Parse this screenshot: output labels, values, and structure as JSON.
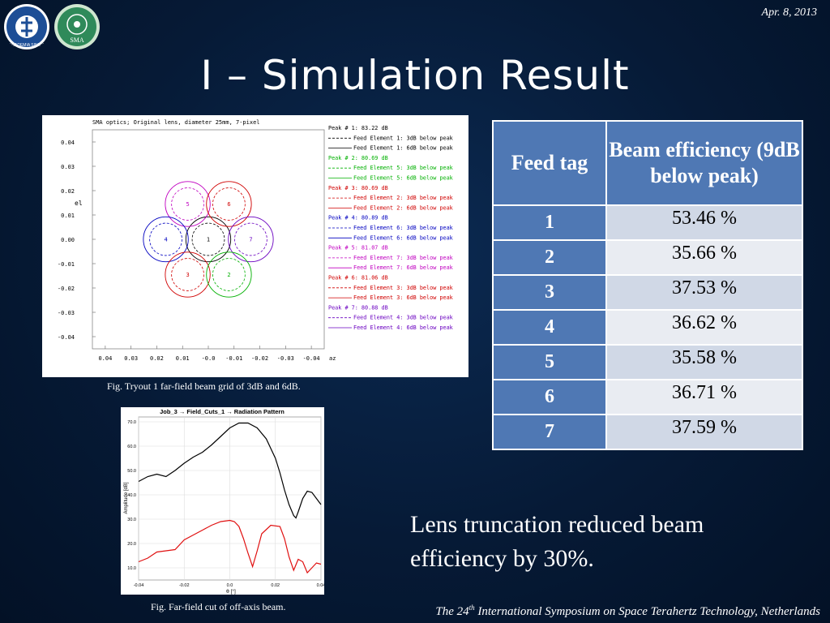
{
  "header": {
    "date": "Apr. 8, 2013"
  },
  "title": "I – Simulation Result",
  "logos": [
    {
      "name": "academia-sinica-logo",
      "icon": "seal-icon",
      "text": "ACADEMIA SINICA"
    },
    {
      "name": "sma-logo",
      "icon": "seal-icon",
      "text": "SMA"
    }
  ],
  "figure1": {
    "caption": "Fig. Tryout 1 far-field beam grid of 3dB and 6dB.",
    "plot_title": "SMA optics; Original lens, diameter 25mm, 7-pixel",
    "ylabel": "el",
    "xlabel": "az",
    "y_ticks": [
      "0.04",
      "0.03",
      "0.02",
      "0.01",
      "0.00",
      "-0.01",
      "-0.02",
      "-0.03",
      "-0.04"
    ],
    "x_ticks": [
      "0.04",
      "0.03",
      "0.02",
      "0.01",
      "-0.0",
      "-0.01",
      "-0.02",
      "-0.03",
      "-0.04"
    ],
    "legend": [
      {
        "text": "Peak # 1:  83.22 dB",
        "color": "#000000"
      },
      {
        "text": "Feed Element 1: 3dB below peak",
        "color": "#000000"
      },
      {
        "text": "Feed Element 1: 6dB below peak",
        "color": "#000000"
      },
      {
        "text": "Peak # 2:  80.69 dB",
        "color": "#00b000"
      },
      {
        "text": "Feed Element 5: 3dB below peak",
        "color": "#00b000"
      },
      {
        "text": "Feed Element 5: 6dB below peak",
        "color": "#00b000"
      },
      {
        "text": "Peak # 3:  80.69 dB",
        "color": "#d00000"
      },
      {
        "text": "Feed Element 2: 3dB below peak",
        "color": "#d00000"
      },
      {
        "text": "Feed Element 2: 6dB below peak",
        "color": "#d00000"
      },
      {
        "text": "Peak # 4:  80.89 dB",
        "color": "#0000c0"
      },
      {
        "text": "Feed Element 6: 3dB below peak",
        "color": "#0000c0"
      },
      {
        "text": "Feed Element 6: 6dB below peak",
        "color": "#0000c0"
      },
      {
        "text": "Peak # 5:  81.07 dB",
        "color": "#c000c0"
      },
      {
        "text": "Feed Element 7: 3dB below peak",
        "color": "#c000c0"
      },
      {
        "text": "Feed Element 7: 6dB below peak",
        "color": "#c000c0"
      },
      {
        "text": "Peak # 6:  81.06 dB",
        "color": "#d00000"
      },
      {
        "text": "Feed Element 3: 3dB below peak",
        "color": "#d00000"
      },
      {
        "text": "Feed Element 3: 6dB below peak",
        "color": "#d00000"
      },
      {
        "text": "Peak # 7:  80.88 dB",
        "color": "#6a00c0"
      },
      {
        "text": "Feed Element 4: 3dB below peak",
        "color": "#6a00c0"
      },
      {
        "text": "Feed Element 4: 6dB below peak",
        "color": "#6a00c0"
      }
    ],
    "beams": [
      {
        "label": "1",
        "az": 0.0,
        "el": 0.0,
        "color": "#000000"
      },
      {
        "label": "5",
        "az": 0.008,
        "el": 0.0145,
        "color": "#c000c0"
      },
      {
        "label": "6",
        "az": -0.008,
        "el": 0.0145,
        "color": "#d00000"
      },
      {
        "label": "4",
        "az": 0.0165,
        "el": 0.0,
        "color": "#0000c0"
      },
      {
        "label": "7",
        "az": -0.0165,
        "el": 0.0,
        "color": "#6a00c0"
      },
      {
        "label": "3",
        "az": 0.008,
        "el": -0.0145,
        "color": "#d00000"
      },
      {
        "label": "2",
        "az": -0.008,
        "el": -0.0145,
        "color": "#00b000"
      }
    ]
  },
  "chart_data": {
    "type": "line",
    "title": "Job_3 → Field_Cuts_1 → Radiation Pattern",
    "xlabel": "θ [°]",
    "ylabel": "Amplitude [dB]",
    "xlim": [
      -0.04,
      0.04
    ],
    "ylim": [
      5,
      72
    ],
    "x_ticks": [
      "-0.04",
      "-0.02",
      "0.0",
      "0.02",
      "0.04"
    ],
    "y_ticks": [
      "70.0",
      "60.0",
      "50.0",
      "40.0",
      "30.0",
      "20.0",
      "10.0"
    ],
    "grid": true,
    "series": [
      {
        "color": "#000000",
        "x": [
          -0.04,
          -0.036,
          -0.032,
          -0.028,
          -0.024,
          -0.02,
          -0.016,
          -0.012,
          -0.008,
          -0.004,
          0.0,
          0.004,
          0.008,
          0.012,
          0.016,
          0.02,
          0.022,
          0.024,
          0.026,
          0.028,
          0.029,
          0.03,
          0.032,
          0.034,
          0.036,
          0.038,
          0.04
        ],
        "y": [
          45.5,
          47.5,
          48.5,
          47.5,
          50,
          53,
          55.5,
          57.5,
          60.5,
          64,
          67.5,
          69.5,
          69.5,
          67.5,
          63,
          55,
          49,
          42,
          36,
          31.5,
          30.5,
          33,
          38.5,
          41.5,
          41,
          38.5,
          36
        ]
      },
      {
        "color": "#e01010",
        "x": [
          -0.04,
          -0.036,
          -0.032,
          -0.028,
          -0.024,
          -0.02,
          -0.016,
          -0.012,
          -0.008,
          -0.004,
          0.0,
          0.002,
          0.004,
          0.006,
          0.008,
          0.01,
          0.012,
          0.014,
          0.018,
          0.022,
          0.024,
          0.026,
          0.028,
          0.03,
          0.032,
          0.034,
          0.036,
          0.038,
          0.04
        ],
        "y": [
          12.5,
          14,
          16.5,
          17,
          17.5,
          21.5,
          23.5,
          25.5,
          27.5,
          29,
          29.5,
          29,
          27,
          22,
          16,
          10.5,
          17,
          24,
          27.5,
          27,
          22,
          14.5,
          9,
          13.5,
          12.5,
          8,
          10,
          12,
          11.5
        ]
      }
    ],
    "caption": "Fig. Far-field cut of off-axis beam."
  },
  "table": {
    "headers": [
      "Feed tag",
      "Beam efficiency (9dB below peak)"
    ],
    "rows": [
      {
        "tag": "1",
        "value": "53.46 %"
      },
      {
        "tag": "2",
        "value": "35.66 %"
      },
      {
        "tag": "3",
        "value": "37.53 %"
      },
      {
        "tag": "4",
        "value": "36.62 %"
      },
      {
        "tag": "5",
        "value": "35.58 %"
      },
      {
        "tag": "6",
        "value": "36.71 %"
      },
      {
        "tag": "7",
        "value": "37.59 %"
      }
    ]
  },
  "note": "Lens truncation reduced beam efficiency by 30%.",
  "footer": {
    "pre": "The 24",
    "sup": "th",
    "post": " International Symposium on Space Terahertz Technology, Netherlands"
  }
}
